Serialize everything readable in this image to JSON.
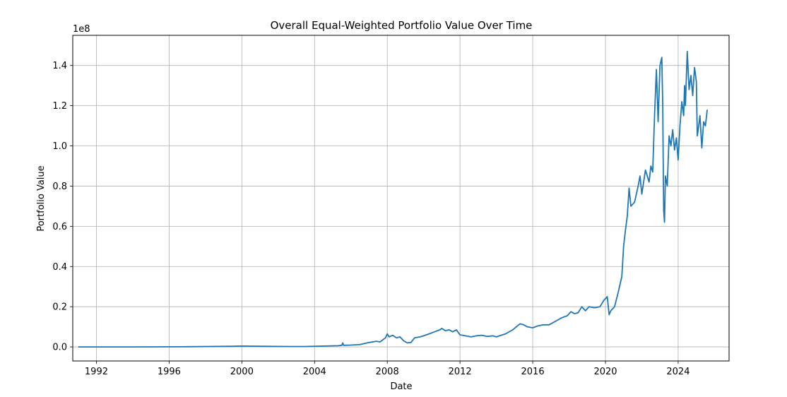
{
  "chart_data": {
    "type": "line",
    "title": "Overall Equal-Weighted Portfolio Value Over Time",
    "xlabel": "Date",
    "ylabel": "Portfolio Value",
    "offset_label": "1e8",
    "xlim": [
      1990.7,
      2026.8
    ],
    "ylim": [
      -0.07,
      1.55
    ],
    "grid": true,
    "x_ticks": [
      1992,
      1996,
      2000,
      2004,
      2008,
      2012,
      2016,
      2020,
      2024
    ],
    "x_tick_labels": [
      "1992",
      "1996",
      "2000",
      "2004",
      "2008",
      "2012",
      "2016",
      "2020",
      "2024"
    ],
    "y_ticks": [
      0.0,
      0.2,
      0.4,
      0.6,
      0.8,
      1.0,
      1.2,
      1.4
    ],
    "y_tick_labels": [
      "0.0",
      "0.2",
      "0.4",
      "0.6",
      "0.8",
      "1.0",
      "1.2",
      "1.4"
    ],
    "series": [
      {
        "color": "#1f77b4",
        "points": [
          [
            1991.0,
            0.0
          ],
          [
            1994.0,
            0.0
          ],
          [
            1997.0,
            0.001
          ],
          [
            1999.5,
            0.003
          ],
          [
            2000.0,
            0.004
          ],
          [
            2001.0,
            0.003
          ],
          [
            2002.5,
            0.002
          ],
          [
            2003.5,
            0.002
          ],
          [
            2004.5,
            0.004
          ],
          [
            2005.3,
            0.006
          ],
          [
            2005.5,
            0.008
          ],
          [
            2005.55,
            0.02
          ],
          [
            2005.6,
            0.008
          ],
          [
            2006.0,
            0.009
          ],
          [
            2006.5,
            0.012
          ],
          [
            2007.0,
            0.022
          ],
          [
            2007.4,
            0.028
          ],
          [
            2007.6,
            0.025
          ],
          [
            2007.9,
            0.045
          ],
          [
            2008.0,
            0.065
          ],
          [
            2008.1,
            0.05
          ],
          [
            2008.3,
            0.058
          ],
          [
            2008.5,
            0.045
          ],
          [
            2008.7,
            0.05
          ],
          [
            2008.9,
            0.03
          ],
          [
            2009.1,
            0.02
          ],
          [
            2009.3,
            0.022
          ],
          [
            2009.5,
            0.045
          ],
          [
            2009.8,
            0.05
          ],
          [
            2010.0,
            0.055
          ],
          [
            2010.3,
            0.065
          ],
          [
            2010.6,
            0.075
          ],
          [
            2010.9,
            0.085
          ],
          [
            2011.0,
            0.092
          ],
          [
            2011.2,
            0.08
          ],
          [
            2011.4,
            0.085
          ],
          [
            2011.6,
            0.075
          ],
          [
            2011.8,
            0.085
          ],
          [
            2012.0,
            0.06
          ],
          [
            2012.3,
            0.055
          ],
          [
            2012.6,
            0.05
          ],
          [
            2012.9,
            0.055
          ],
          [
            2013.2,
            0.058
          ],
          [
            2013.5,
            0.052
          ],
          [
            2013.8,
            0.055
          ],
          [
            2014.0,
            0.05
          ],
          [
            2014.5,
            0.065
          ],
          [
            2014.9,
            0.085
          ],
          [
            2015.1,
            0.1
          ],
          [
            2015.3,
            0.115
          ],
          [
            2015.5,
            0.11
          ],
          [
            2015.7,
            0.1
          ],
          [
            2016.0,
            0.095
          ],
          [
            2016.3,
            0.105
          ],
          [
            2016.6,
            0.11
          ],
          [
            2016.9,
            0.11
          ],
          [
            2017.2,
            0.125
          ],
          [
            2017.6,
            0.145
          ],
          [
            2017.9,
            0.155
          ],
          [
            2018.1,
            0.175
          ],
          [
            2018.3,
            0.165
          ],
          [
            2018.5,
            0.17
          ],
          [
            2018.7,
            0.2
          ],
          [
            2018.9,
            0.18
          ],
          [
            2019.1,
            0.2
          ],
          [
            2019.4,
            0.195
          ],
          [
            2019.7,
            0.2
          ],
          [
            2019.9,
            0.23
          ],
          [
            2020.1,
            0.25
          ],
          [
            2020.2,
            0.16
          ],
          [
            2020.3,
            0.18
          ],
          [
            2020.5,
            0.2
          ],
          [
            2020.7,
            0.27
          ],
          [
            2020.9,
            0.35
          ],
          [
            2021.0,
            0.5
          ],
          [
            2021.1,
            0.58
          ],
          [
            2021.2,
            0.65
          ],
          [
            2021.3,
            0.79
          ],
          [
            2021.4,
            0.7
          ],
          [
            2021.6,
            0.72
          ],
          [
            2021.8,
            0.8
          ],
          [
            2021.9,
            0.85
          ],
          [
            2022.0,
            0.76
          ],
          [
            2022.2,
            0.88
          ],
          [
            2022.4,
            0.82
          ],
          [
            2022.5,
            0.9
          ],
          [
            2022.6,
            0.87
          ],
          [
            2022.7,
            1.15
          ],
          [
            2022.8,
            1.38
          ],
          [
            2022.9,
            1.12
          ],
          [
            2023.0,
            1.4
          ],
          [
            2023.1,
            1.44
          ],
          [
            2023.15,
            1.2
          ],
          [
            2023.2,
            0.68
          ],
          [
            2023.25,
            0.62
          ],
          [
            2023.3,
            0.85
          ],
          [
            2023.4,
            0.8
          ],
          [
            2023.5,
            1.05
          ],
          [
            2023.6,
            1.0
          ],
          [
            2023.7,
            1.08
          ],
          [
            2023.8,
            0.98
          ],
          [
            2023.9,
            1.04
          ],
          [
            2024.0,
            0.93
          ],
          [
            2024.1,
            1.1
          ],
          [
            2024.2,
            1.22
          ],
          [
            2024.3,
            1.15
          ],
          [
            2024.35,
            1.3
          ],
          [
            2024.4,
            1.2
          ],
          [
            2024.5,
            1.47
          ],
          [
            2024.6,
            1.28
          ],
          [
            2024.7,
            1.35
          ],
          [
            2024.8,
            1.25
          ],
          [
            2024.9,
            1.39
          ],
          [
            2025.0,
            1.32
          ],
          [
            2025.05,
            1.05
          ],
          [
            2025.1,
            1.08
          ],
          [
            2025.2,
            1.15
          ],
          [
            2025.3,
            0.99
          ],
          [
            2025.4,
            1.12
          ],
          [
            2025.5,
            1.1
          ],
          [
            2025.6,
            1.18
          ]
        ]
      }
    ]
  }
}
